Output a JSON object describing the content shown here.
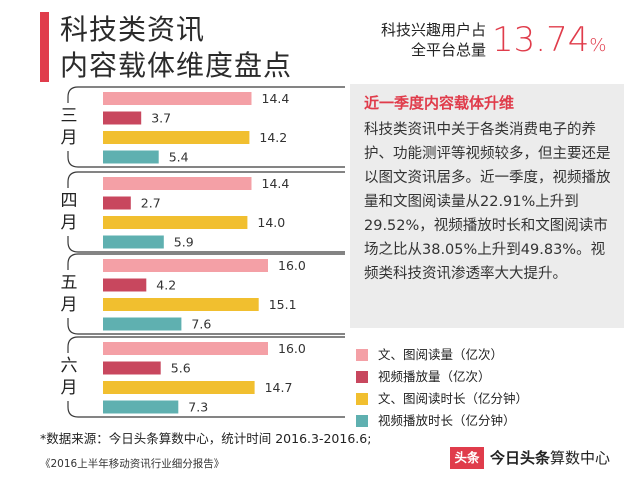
{
  "header": {
    "title_line1": "科技类资讯",
    "title_line2": "内容载体维度盘点",
    "stat_label_line1": "科技兴趣用户占",
    "stat_label_line2": "全平台总量",
    "stat_value": "13.74",
    "stat_unit": "%"
  },
  "info": {
    "title": "近一季度内容载体升维",
    "text": "科技类资讯中关于各类消费电子的养护、功能测评等视频较多，但主要还是以图文资讯居多。近一季度，视频播放量和文图阅读量从22.91%上升到29.52%，视频播放时长和文图阅读市场之比从38.05%上升到49.83%。视频类科技资讯渗透率大大提升。"
  },
  "chart_data": {
    "type": "bar",
    "orientation": "horizontal",
    "categories": [
      "三月",
      "四月",
      "五月",
      "六月"
    ],
    "series": [
      {
        "name": "文、图阅读量（亿次）",
        "color": "#f4a0a6",
        "values": [
          14.4,
          14.4,
          16.0,
          16.0
        ],
        "labels": [
          "14.4",
          "14.4",
          "16.0",
          "16.0"
        ]
      },
      {
        "name": "视频播放量（亿次）",
        "color": "#c8475e",
        "values": [
          3.7,
          2.7,
          4.2,
          5.6
        ],
        "labels": [
          "3.7",
          "2.7",
          "4.2",
          "5.6"
        ]
      },
      {
        "name": "文、图阅读时长（亿分钟）",
        "color": "#f1bf2f",
        "values": [
          14.2,
          14.0,
          15.1,
          14.7
        ],
        "labels": [
          "14.2",
          "14.0",
          "15.1",
          "14.7"
        ]
      },
      {
        "name": "视频播放时长（亿分钟）",
        "color": "#5fb0b0",
        "values": [
          5.4,
          5.9,
          7.6,
          7.3
        ],
        "labels": [
          "5.4",
          "5.9",
          "7.6",
          "7.3"
        ]
      }
    ],
    "legend_position": "bottom-right",
    "grid": false
  },
  "footer": {
    "source": "*数据来源：今日头条算数中心，统计时间 2016.3-2016.6;",
    "report": "《2016上半年移动资讯行业细分报告》",
    "brand_logo": "头条",
    "brand_bold": "今日头条",
    "brand_rest": "算数中心"
  }
}
